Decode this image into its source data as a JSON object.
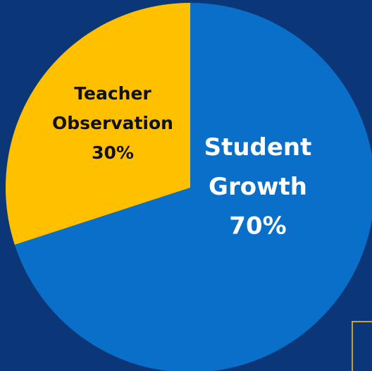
{
  "chart_data": {
    "type": "pie",
    "categories": [
      "Student Growth",
      "Teacher Observation"
    ],
    "values": [
      70,
      30
    ],
    "value_labels": [
      "70%",
      "30%"
    ],
    "colors": [
      "#0a6fc8",
      "#ffc000"
    ],
    "label_colors": [
      "#ffffff",
      "#111111"
    ]
  }
}
